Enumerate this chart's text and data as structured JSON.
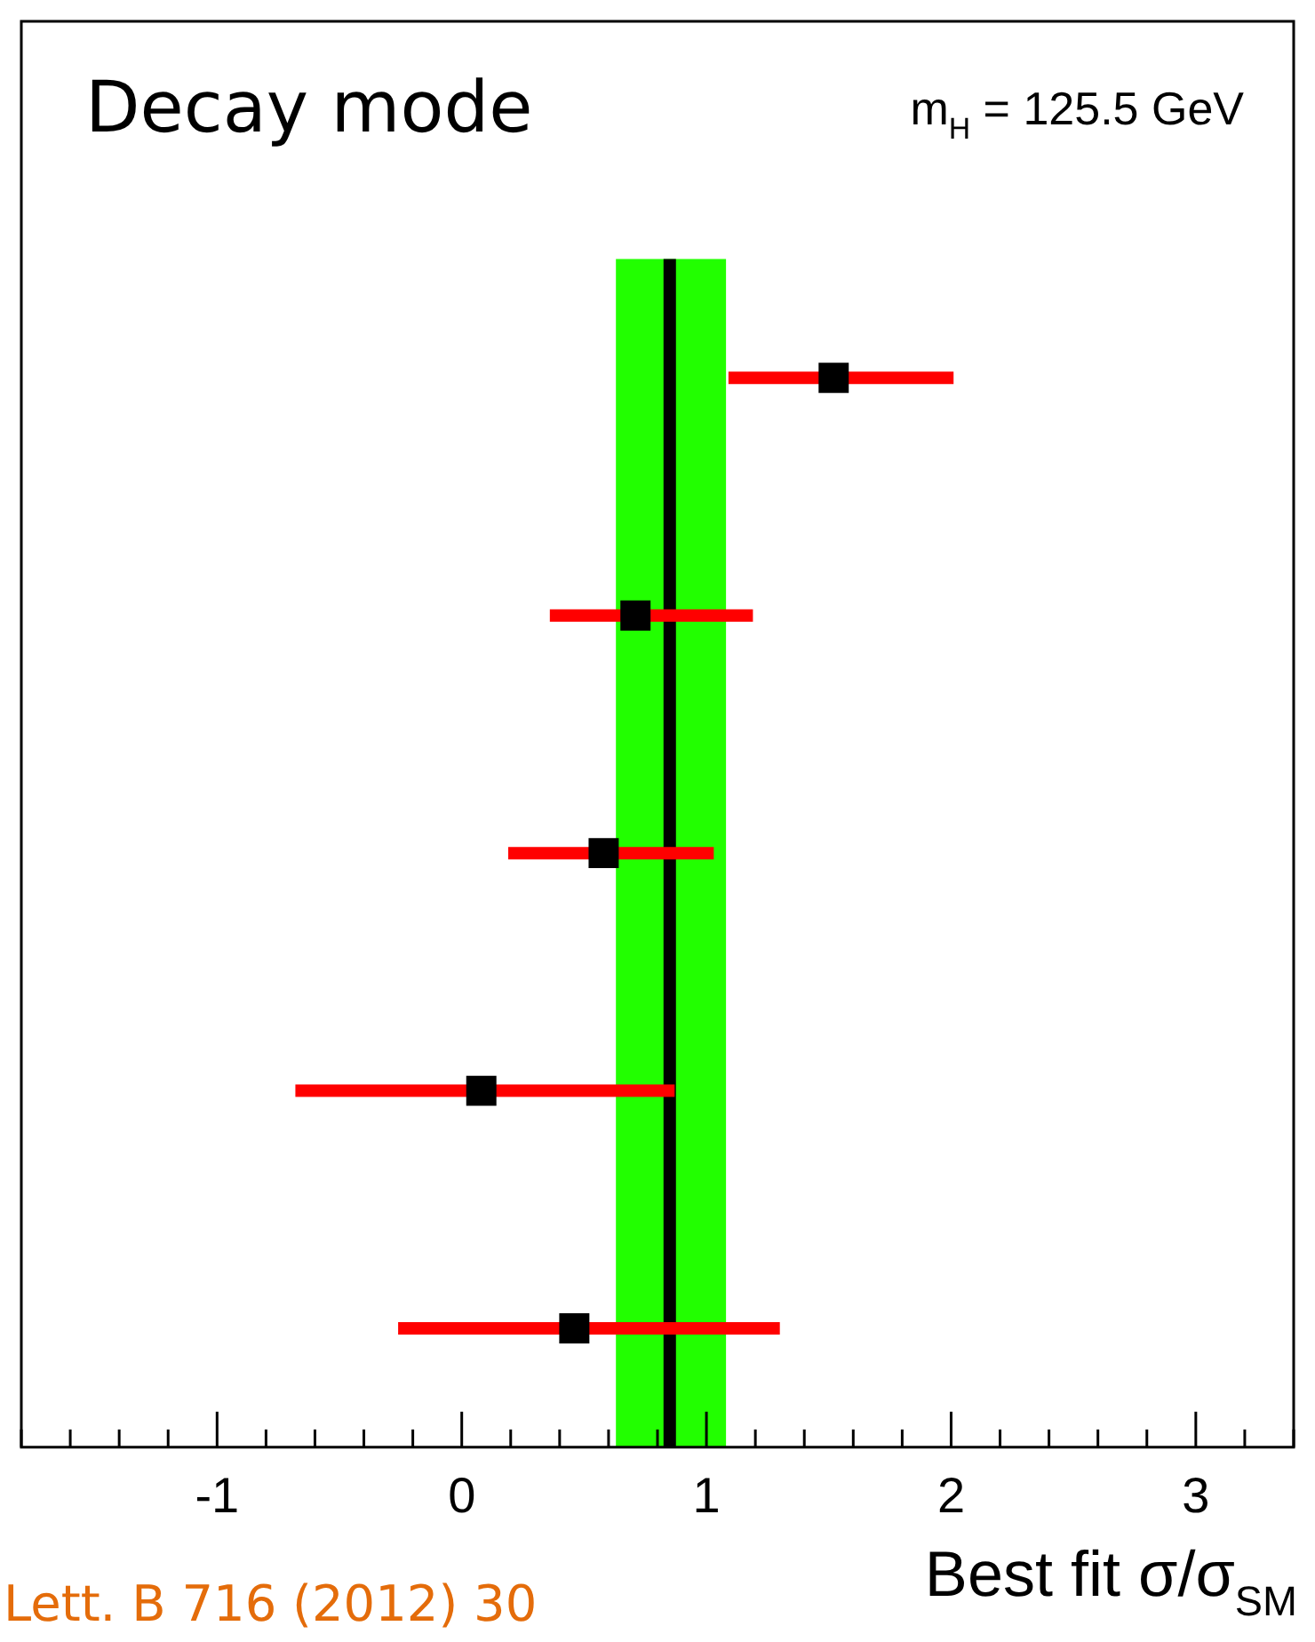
{
  "chart_data": {
    "type": "scatter",
    "title": "Decay mode",
    "xlabel": "Best fit σ/σ$_{SM}$",
    "annotations": [
      "m$_{H}$ = 125.5 GeV",
      "Lett. B 716 (2012) 30"
    ],
    "orientation": "horizontal",
    "categories": [
      null,
      null,
      null,
      null,
      null
    ],
    "series": [
      {
        "color": "#000000",
        "values": [
          1.52,
          0.71,
          0.58,
          0.08,
          0.46
        ],
        "errors": [
          [
            1.09,
            2.01
          ],
          [
            0.36,
            1.19
          ],
          [
            0.19,
            1.03
          ],
          [
            -0.68,
            0.87
          ],
          [
            -0.26,
            1.3
          ]
        ]
      }
    ],
    "marker": "square",
    "xlim": [
      -1.8,
      3.4
    ],
    "xticks": [
      {
        "value": -1.8,
        "label": null
      },
      {
        "value": -1.6,
        "label": null
      },
      {
        "value": -1.4,
        "label": null
      },
      {
        "value": -1.2,
        "label": null
      },
      -1,
      {
        "value": -0.8,
        "label": null
      },
      {
        "value": -0.6,
        "label": null
      },
      {
        "value": -0.4,
        "label": null
      },
      {
        "value": -0.2,
        "label": null
      },
      0,
      {
        "value": 0.2,
        "label": null
      },
      {
        "value": 0.4,
        "label": null
      },
      {
        "value": 0.6,
        "label": null
      },
      {
        "value": 0.8,
        "label": null
      },
      1,
      {
        "value": 1.2,
        "label": null
      },
      {
        "value": 1.4,
        "label": null
      },
      {
        "value": 1.6,
        "label": null
      },
      {
        "value": 1.8,
        "label": null
      },
      2,
      {
        "value": 2.2,
        "label": null
      },
      {
        "value": 2.4,
        "label": null
      },
      {
        "value": 2.6,
        "label": null
      },
      {
        "value": 2.8,
        "label": null
      },
      3,
      {
        "value": 3.2,
        "label": null
      },
      {
        "value": 3.4,
        "label": null
      }
    ],
    "ref_lines": [
      {
        "axis": "x",
        "value": 0.85,
        "color": "#000000"
      }
    ],
    "bands": [
      {
        "axis": "x",
        "from": 0.63,
        "to": 1.08,
        "color": "#22ff00"
      }
    ],
    "grid": false,
    "legend": false,
    "tick_labels": "x"
  }
}
